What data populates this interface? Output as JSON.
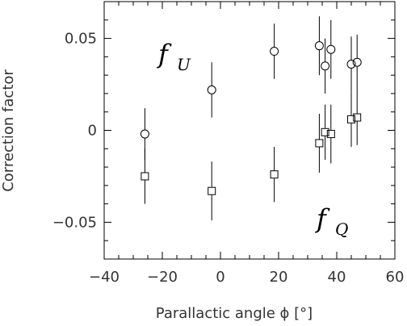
{
  "chart_data": {
    "type": "scatter",
    "xlabel": "Parallactic angle ϕ [°]",
    "ylabel": "Correction factor",
    "xlim": [
      -40,
      60
    ],
    "ylim": [
      -0.07,
      0.07
    ],
    "xticks": [
      -40,
      -20,
      0,
      20,
      40,
      60
    ],
    "xtick_labels": [
      "−40",
      "−20",
      "0",
      "20",
      "40",
      "60"
    ],
    "yticks": [
      -0.05,
      0,
      0.05
    ],
    "ytick_labels": [
      "−0.05",
      "0",
      "0.05"
    ],
    "grid": false,
    "series": [
      {
        "name": "fU",
        "marker": "circle",
        "x": [
          -26,
          -3,
          18.5,
          34,
          36,
          38,
          45,
          47
        ],
        "y": [
          -0.002,
          0.022,
          0.043,
          0.046,
          0.035,
          0.044,
          0.036,
          0.037
        ],
        "err": [
          0.014,
          0.015,
          0.015,
          0.016,
          0.015,
          0.016,
          0.015,
          0.015
        ]
      },
      {
        "name": "fQ",
        "marker": "square",
        "x": [
          -26,
          -3,
          18.5,
          34,
          36,
          38,
          45,
          47
        ],
        "y": [
          -0.025,
          -0.033,
          -0.024,
          -0.007,
          -0.001,
          -0.002,
          0.006,
          0.007
        ],
        "err": [
          0.015,
          0.016,
          0.015,
          0.016,
          0.015,
          0.016,
          0.015,
          0.015
        ]
      }
    ],
    "annotations": [
      {
        "main": "f",
        "sub": "U"
      },
      {
        "main": "f",
        "sub": "Q"
      }
    ]
  }
}
